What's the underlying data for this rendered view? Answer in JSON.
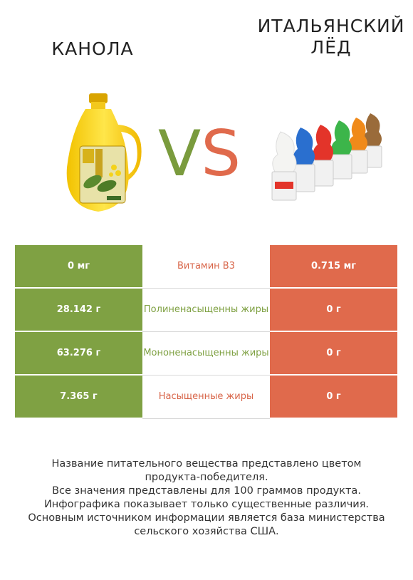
{
  "header": {
    "left_title": "КАНОЛА",
    "right_title_line1": "ИТАЛЬЯНСКИЙ",
    "right_title_line2": "ЛЁД",
    "vs_v": "V",
    "vs_s": "S"
  },
  "colors": {
    "left_winner": "#7fa143",
    "right_winner": "#e06a4c"
  },
  "rows": [
    {
      "left": "0 мг",
      "label": "Витамин B3",
      "right": "0.715 мг",
      "winner": "right"
    },
    {
      "left": "28.142 г",
      "label": "Полиненасыщенны жиры",
      "right": "0 г",
      "winner": "left"
    },
    {
      "left": "63.276 г",
      "label": "Мононенасыщенны жиры",
      "right": "0 г",
      "winner": "left"
    },
    {
      "left": "7.365 г",
      "label": "Насыщенные жиры",
      "right": "0 г",
      "winner": "left"
    }
  ],
  "footer": {
    "line1": "Название питательного вещества представлено цветом",
    "line2": "продукта-победителя.",
    "line3a": "Все значения представлены для ",
    "line3b": "100",
    "line3c": " граммов продукта.",
    "line4": "Инфографика показывает только существенные различия.",
    "line5": "Основным источником информации является база министерства",
    "line6": "сельского хозяйства США."
  }
}
